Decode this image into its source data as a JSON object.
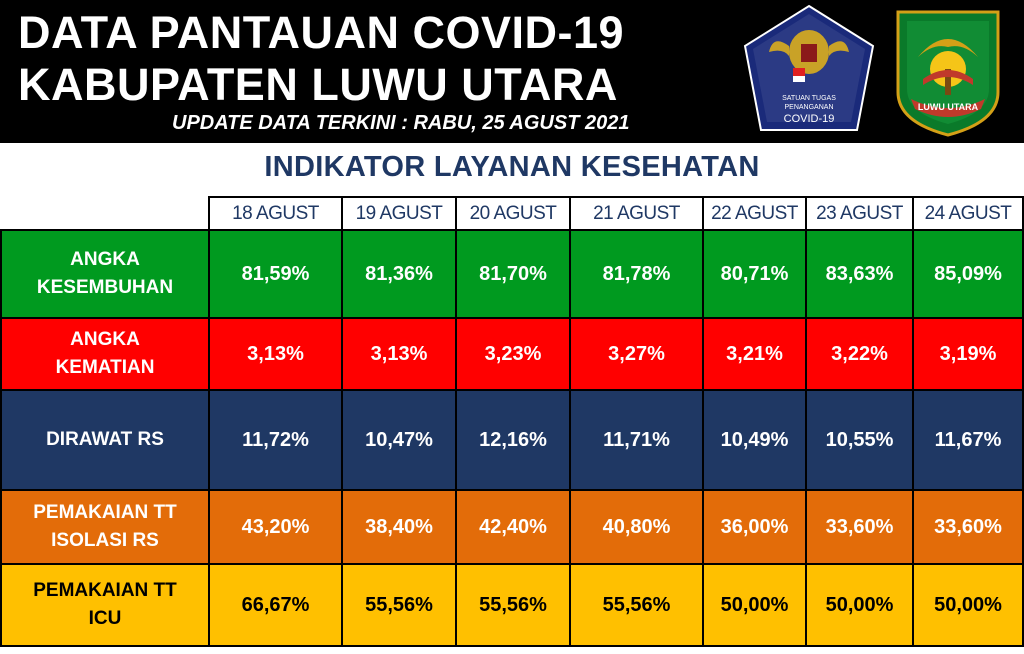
{
  "header": {
    "title_line1": "DATA PANTAUAN COVID-19",
    "title_line2": "KABUPATEN LUWU UTARA",
    "update_text": "UPDATE DATA TERKINI : RABU, 25 AGUST 2021"
  },
  "logos": {
    "satgas": {
      "line1": "SATUAN TUGAS",
      "line2": "PENANGANAN",
      "line3": "COVID-19"
    },
    "luwu": {
      "text": "LUWU UTARA"
    }
  },
  "section_title": "INDIKATOR LAYANAN KESEHATAN",
  "dates": [
    "18 AGUST",
    "19 AGUST",
    "20 AGUST",
    "21 AGUST",
    "22 AGUST",
    "23 AGUST",
    "24 AGUST"
  ],
  "rows": [
    {
      "label_line1": "ANGKA",
      "label_line2": "KESEMBUHAN",
      "color": "#009a1f",
      "values": [
        "81,59%",
        "81,36%",
        "81,70%",
        "81,78%",
        "80,71%",
        "83,63%",
        "85,09%"
      ]
    },
    {
      "label_line1": "ANGKA",
      "label_line2": "KEMATIAN",
      "color": "#ff0000",
      "values": [
        "3,13%",
        "3,13%",
        "3,23%",
        "3,27%",
        "3,21%",
        "3,22%",
        "3,19%"
      ]
    },
    {
      "label_line1": "DIRAWAT RS",
      "label_line2": "",
      "color": "#1f3864",
      "values": [
        "11,72%",
        "10,47%",
        "12,16%",
        "11,71%",
        "10,49%",
        "10,55%",
        "11,67%"
      ]
    },
    {
      "label_line1": "PEMAKAIAN TT",
      "label_line2": "ISOLASI RS",
      "color": "#e36c09",
      "values": [
        "43,20%",
        "38,40%",
        "42,40%",
        "40,80%",
        "36,00%",
        "33,60%",
        "33,60%"
      ]
    },
    {
      "label_line1": "PEMAKAIAN TT",
      "label_line2": "ICU",
      "color": "#ffc000",
      "values": [
        "66,67%",
        "55,56%",
        "55,56%",
        "55,56%",
        "50,00%",
        "50,00%",
        "50,00%"
      ]
    }
  ]
}
